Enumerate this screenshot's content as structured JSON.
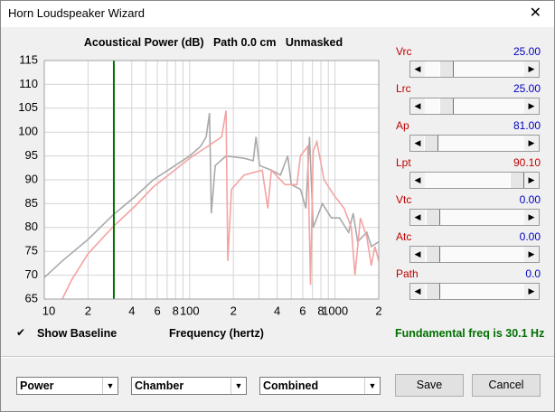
{
  "window": {
    "title": "Horn Loudspeaker Wizard"
  },
  "chart_data": {
    "type": "line",
    "title": "Acoustical Power (dB)   Path 0.0 cm   Unmasked",
    "x_label": "Frequency (hertz)",
    "xlog": true,
    "xlim": [
      10,
      2000
    ],
    "ylim": [
      65,
      115
    ],
    "xticks": [
      10,
      {
        "value": 20,
        "label": "2"
      },
      {
        "value": 40,
        "label": "4"
      },
      {
        "value": 60,
        "label": "6"
      },
      {
        "value": 80,
        "label": "8"
      },
      100,
      {
        "value": 200,
        "label": "2"
      },
      {
        "value": 400,
        "label": "4"
      },
      {
        "value": 600,
        "label": "6"
      },
      {
        "value": 800,
        "label": "8"
      },
      1000,
      {
        "value": 2000,
        "label": "2"
      }
    ],
    "xminor": [
      30,
      50,
      70,
      90,
      300,
      500,
      700,
      900
    ],
    "yticks": [
      65,
      70,
      75,
      80,
      85,
      90,
      95,
      100,
      105,
      110,
      115
    ],
    "grid": true,
    "marker": {
      "x": 30.1,
      "color": "#007000"
    },
    "series": [
      {
        "color": "#a9a9a9",
        "x": [
          10,
          13.3,
          20,
          29.4,
          42.2,
          56.2,
          75,
          100,
          119,
          130,
          137,
          141,
          150,
          178,
          237,
          274,
          286,
          303,
          365,
          422,
          473,
          501,
          579,
          631,
          668,
          708,
          818,
          944,
          1075,
          1241,
          1334,
          1433,
          1655,
          1778,
          2000
        ],
        "values": [
          69.5,
          73,
          77.5,
          82.5,
          86.5,
          90,
          92.5,
          95,
          97,
          99,
          104,
          83,
          93,
          95,
          94.5,
          94,
          99,
          93,
          92,
          91,
          95,
          89,
          88,
          84,
          99,
          80,
          85,
          82,
          82,
          79,
          83,
          77,
          79,
          76,
          77
        ]
      },
      {
        "color": "#f4a3a3",
        "x": [
          13.3,
          15.4,
          20,
          29.4,
          42.2,
          56.2,
          75,
          100,
          133,
          166,
          178,
          183,
          194,
          237,
          316,
          345,
          365,
          453,
          547,
          579,
          649,
          678,
          708,
          750,
          841,
          972,
          1155,
          1296,
          1373,
          1496,
          1655,
          1778,
          1884,
          2000
        ],
        "values": [
          65,
          69,
          74.5,
          80,
          84.5,
          88.5,
          91.5,
          94.5,
          97,
          99,
          104.5,
          73,
          88,
          91,
          92,
          84,
          92,
          89,
          89,
          95,
          97,
          68,
          96,
          98,
          90,
          87,
          84,
          80,
          70,
          82,
          78,
          72,
          76,
          73
        ]
      }
    ]
  },
  "baseline": {
    "label": "Show Baseline"
  },
  "fundamental": "Fundamental freq is 30.1 Hz",
  "controls": [
    {
      "label": "Vrc",
      "value": "25.00",
      "value_color": "#0000c0"
    },
    {
      "label": "Lrc",
      "value": "25.00",
      "value_color": "#0000c0"
    },
    {
      "label": "Ap",
      "value": "81.00",
      "value_color": "#0000c0"
    },
    {
      "label": "Lpt",
      "value": "90.10",
      "value_color": "#c00000"
    },
    {
      "label": "Vtc",
      "value": "0.00",
      "value_color": "#0000c0"
    },
    {
      "label": "Atc",
      "value": "0.00",
      "value_color": "#0000c0"
    },
    {
      "label": "Path",
      "value": "0.0",
      "value_color": "#0000c0"
    }
  ],
  "dropdowns": [
    "Power",
    "Chamber",
    "Combined"
  ],
  "buttons": [
    "Save",
    "Cancel"
  ]
}
